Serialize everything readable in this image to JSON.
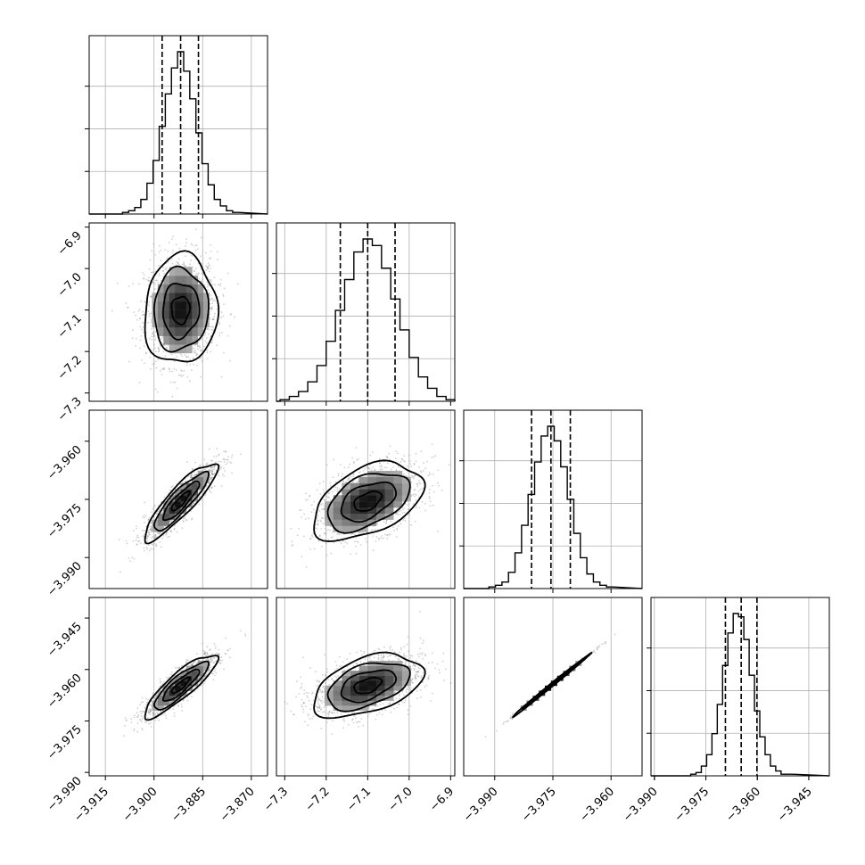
{
  "chart_data": {
    "type": "corner",
    "parameters": [
      {
        "index": 0,
        "range": [
          -3.92,
          -3.865
        ],
        "ticks": [
          -3.915,
          -3.9,
          -3.885,
          -3.87
        ],
        "tick_labels": [
          "−3.915",
          "−3.900",
          "−3.885",
          "−3.870"
        ],
        "mean": -3.8918,
        "sigma": 0.0056,
        "quantiles": [
          -3.8975,
          -3.8918,
          -3.8863
        ]
      },
      {
        "index": 1,
        "range": [
          -7.32,
          -6.89
        ],
        "ticks": [
          -7.3,
          -7.2,
          -7.1,
          -7.0,
          -6.9
        ],
        "tick_labels": [
          "−7.3",
          "−7.2",
          "−7.1",
          "−7.0",
          "−6.9"
        ],
        "mean": -7.1,
        "sigma": 0.066,
        "quantiles": [
          -7.166,
          -7.1,
          -7.034
        ]
      },
      {
        "index": 2,
        "range": [
          -3.998,
          -3.952
        ],
        "ticks": [
          -3.99,
          -3.975,
          -3.96
        ],
        "tick_labels": [
          "−3.990",
          "−3.975",
          "−3.960"
        ],
        "mean": -3.9755,
        "sigma": 0.005,
        "quantiles": [
          -3.9805,
          -3.9755,
          -3.9705
        ]
      },
      {
        "index": 3,
        "range": [
          -3.991,
          -3.939
        ],
        "ticks": [
          -3.99,
          -3.975,
          -3.96,
          -3.945
        ],
        "tick_labels": [
          "−3.990",
          "−3.975",
          "−3.960",
          "−3.945"
        ],
        "mean": -3.9647,
        "sigma": 0.0046,
        "quantiles": [
          -3.9693,
          -3.9647,
          -3.9601
        ]
      }
    ],
    "histograms": [
      {
        "param": 0,
        "type": "step",
        "counts": [
          1,
          2,
          4,
          9,
          19,
          33,
          54,
          74,
          90,
          100,
          88,
          71,
          50,
          31,
          18,
          9,
          5,
          2,
          1
        ]
      },
      {
        "param": 1,
        "type": "step",
        "counts": [
          1,
          3,
          6,
          12,
          22,
          37,
          56,
          75,
          92,
          100,
          96,
          82,
          63,
          44,
          27,
          15,
          8,
          3,
          1
        ]
      },
      {
        "param": 2,
        "type": "step",
        "counts": [
          1,
          2,
          4,
          10,
          22,
          39,
          58,
          78,
          94,
          100,
          91,
          75,
          55,
          34,
          19,
          9,
          4,
          2,
          1
        ]
      },
      {
        "param": 3,
        "type": "step",
        "counts": [
          1,
          2,
          6,
          13,
          26,
          44,
          68,
          88,
          100,
          98,
          84,
          62,
          40,
          24,
          13,
          6,
          3,
          1,
          1
        ]
      }
    ],
    "correlations": [
      {
        "x": 0,
        "y": 1,
        "rho": 0.05
      },
      {
        "x": 0,
        "y": 2,
        "rho": 0.88
      },
      {
        "x": 1,
        "y": 2,
        "rho": 0.45
      },
      {
        "x": 0,
        "y": 3,
        "rho": 0.87
      },
      {
        "x": 1,
        "y": 3,
        "rho": 0.45
      },
      {
        "x": 2,
        "y": 3,
        "rho": 0.998
      }
    ],
    "contour_levels_sigma": [
      0.5,
      1.0,
      1.5,
      2.0
    ],
    "grid": true,
    "legend": "none",
    "title": "",
    "xlabel": "",
    "ylabel": ""
  },
  "colors": {
    "line": "#000000",
    "grid": "#b0b0b0",
    "density_dark": "#000000",
    "density_light": "#f2f2f2",
    "background": "#ffffff"
  }
}
